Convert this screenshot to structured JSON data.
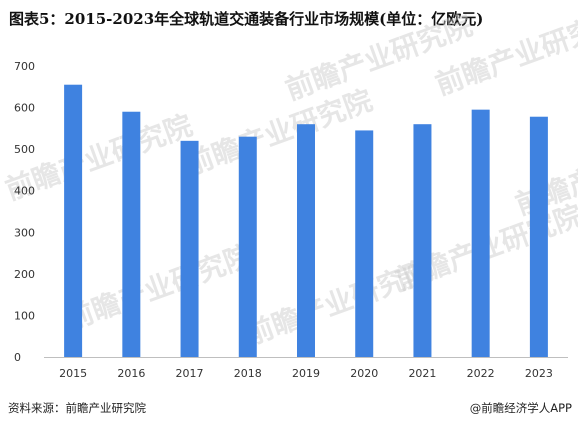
{
  "title": "图表5：2015-2023年全球轨道交通装备行业市场规模(单位：亿欧元)",
  "source": "资料来源：前瞻产业研究院",
  "brand": "@前瞻经济学人APP",
  "watermark": "前瞻产业研究院",
  "colors": {
    "bar": "#3f82e0",
    "axis": "#bfbfbf"
  },
  "chart_data": {
    "type": "bar",
    "title": "图表5：2015-2023年全球轨道交通装备行业市场规模(单位：亿欧元)",
    "categories": [
      "2015",
      "2016",
      "2017",
      "2018",
      "2019",
      "2020",
      "2021",
      "2022",
      "2023"
    ],
    "values": [
      655,
      590,
      520,
      530,
      560,
      545,
      560,
      595,
      578
    ],
    "ylim": [
      0,
      700
    ],
    "yticks": [
      0,
      100,
      200,
      300,
      400,
      500,
      600,
      700
    ],
    "xlabel": "",
    "ylabel": "",
    "grid": false,
    "legend": "none"
  }
}
